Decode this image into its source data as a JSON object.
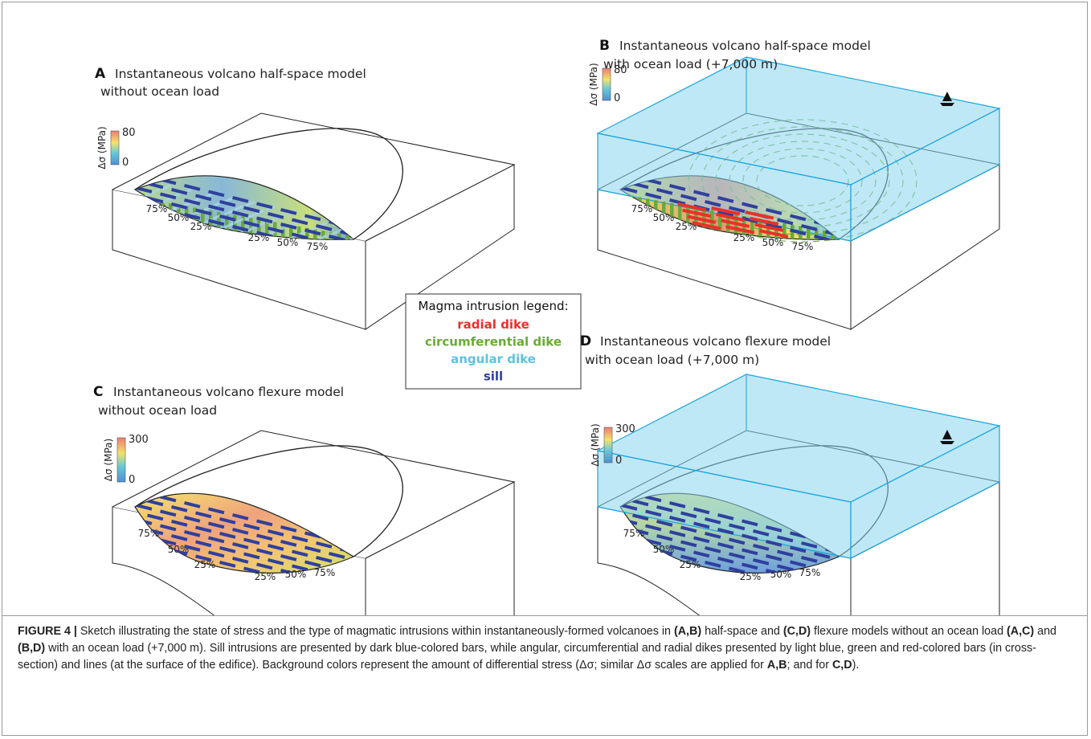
{
  "panels": [
    {
      "letter": "A",
      "title_line1": "Instantaneous volcano half-space model",
      "title_line2": "without ocean load",
      "scale_label": "Δσ (MPa)",
      "scale_max": 80,
      "scale_min": 0,
      "percent_labels": [
        "75%",
        "50%",
        "25%",
        "25%",
        "50%",
        "75%"
      ]
    },
    {
      "letter": "B",
      "title_line1": "Instantaneous volcano half-space model",
      "title_line2": "with ocean load (+7,000 m)",
      "scale_label": "Δσ (MPa)",
      "scale_max": 80,
      "scale_min": 0,
      "percent_labels": [
        "75%",
        "50%",
        "25%",
        "25%",
        "50%",
        "75%"
      ]
    },
    {
      "letter": "C",
      "title_line1": "Instantaneous volcano flexure model",
      "title_line2": "without ocean load",
      "scale_label": "Δσ (MPa)",
      "scale_max": 300,
      "scale_min": 0,
      "percent_labels": [
        "75%",
        "50%",
        "25%",
        "25%",
        "50%",
        "75%"
      ]
    },
    {
      "letter": "D",
      "title_line1": "Instantaneous volcano flexure model",
      "title_line2": "with ocean load (+7,000 m)",
      "scale_label": "Δσ (MPa)",
      "scale_max": 300,
      "scale_min": 0,
      "percent_labels": [
        "75%",
        "50%",
        "25%",
        "25%",
        "50%",
        "75%"
      ]
    }
  ],
  "legend": {
    "title": "Magma intrusion legend:",
    "items": [
      {
        "label": "radial dike",
        "color": "#e8312a"
      },
      {
        "label": "circumferential dike",
        "color": "#6aaa3a"
      },
      {
        "label": "angular dike",
        "color": "#5bc3e0"
      },
      {
        "label": "sill",
        "color": "#2f3f9f"
      }
    ]
  },
  "caption": {
    "segments": [
      {
        "text": "FIGURE 4 |",
        "bold": true
      },
      {
        "text": " Sketch illustrating the state of stress and the type of magmatic intrusions within instantaneously-formed volcanoes in ",
        "bold": false
      },
      {
        "text": "(A,B)",
        "bold": true
      },
      {
        "text": " half-space and ",
        "bold": false
      },
      {
        "text": "(C,D)",
        "bold": true
      },
      {
        "text": " flexure models without an ocean load ",
        "bold": false
      },
      {
        "text": "(A,C)",
        "bold": true
      },
      {
        "text": " and ",
        "bold": false
      },
      {
        "text": "(B,D)",
        "bold": true
      },
      {
        "text": " with an ocean load (+7,000 m). Sill intrusions are presented by dark blue-colored bars, while angular, circumferential and radial dikes presented by light blue, green and red-colored bars (in cross-section) and lines (at the surface of the edifice). Background colors represent the amount of differential stress (Δσ; similar Δσ scales are applied for ",
        "bold": false
      },
      {
        "text": "A,B",
        "bold": true
      },
      {
        "text": "; and for ",
        "bold": false
      },
      {
        "text": "C,D",
        "bold": true
      },
      {
        "text": ").",
        "bold": false
      }
    ]
  }
}
